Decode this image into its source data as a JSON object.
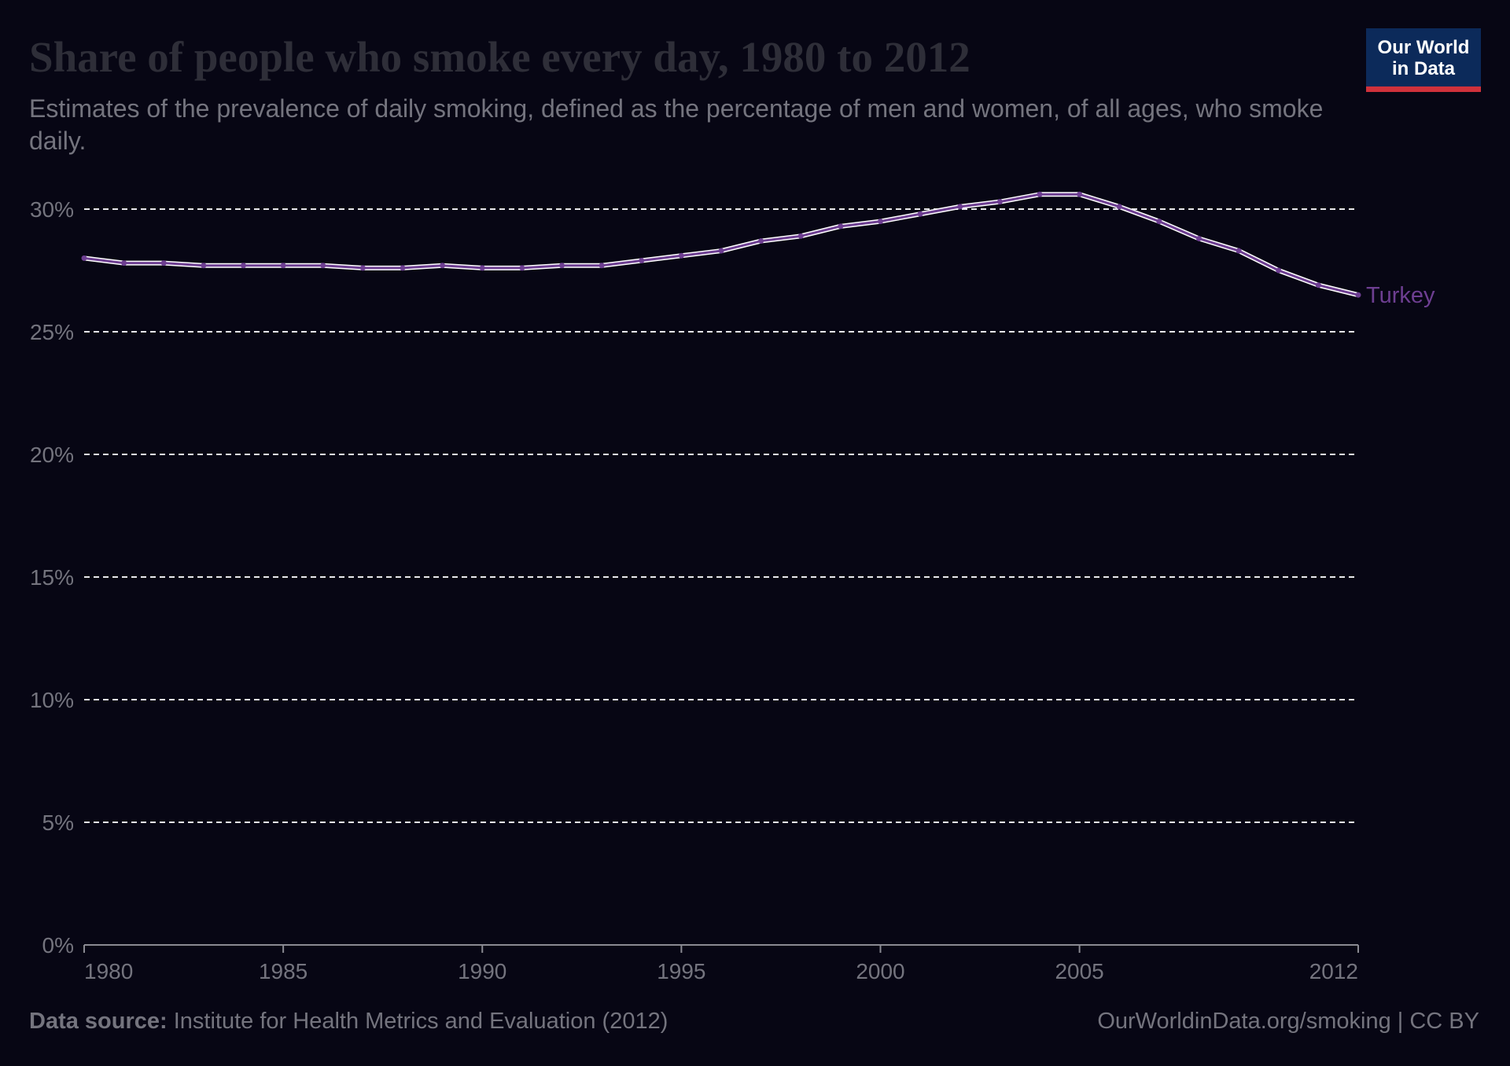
{
  "header": {
    "title": "Share of people who smoke every day, 1980 to 2012",
    "subtitle": "Estimates of the prevalence of daily smoking, defined as the percentage of men and women, of all ages, who smoke daily."
  },
  "logo": {
    "line1": "Our World",
    "line2": "in Data",
    "colors": {
      "background": "#0c2a5a",
      "accent": "#d0313b"
    }
  },
  "footer": {
    "source_label": "Data source:",
    "source_text": "Institute for Health Metrics and Evaluation (2012)",
    "attribution": "OurWorldinData.org/smoking | CC BY"
  },
  "chart_data": {
    "type": "line",
    "title": "Share of people who smoke every day, 1980 to 2012",
    "xlabel": "",
    "ylabel": "",
    "x": [
      1980,
      1981,
      1982,
      1983,
      1984,
      1985,
      1986,
      1987,
      1988,
      1989,
      1990,
      1991,
      1992,
      1993,
      1994,
      1995,
      1996,
      1997,
      1998,
      1999,
      2000,
      2001,
      2002,
      2003,
      2004,
      2005,
      2006,
      2007,
      2008,
      2009,
      2010,
      2011,
      2012
    ],
    "series": [
      {
        "name": "Turkey",
        "color": "#6d3e91",
        "values": [
          28.0,
          27.8,
          27.8,
          27.7,
          27.7,
          27.7,
          27.7,
          27.6,
          27.6,
          27.7,
          27.6,
          27.6,
          27.7,
          27.7,
          27.9,
          28.1,
          28.3,
          28.7,
          28.9,
          29.3,
          29.5,
          29.8,
          30.1,
          30.3,
          30.6,
          30.6,
          30.1,
          29.5,
          28.8,
          28.3,
          27.5,
          26.9,
          26.5
        ]
      }
    ],
    "xlim": [
      1980,
      2012
    ],
    "ylim": [
      0,
      30
    ],
    "x_ticks": [
      {
        "value": 1980,
        "label": "1980"
      },
      {
        "value": 1985,
        "label": "1985"
      },
      {
        "value": 1990,
        "label": "1990"
      },
      {
        "value": 1995,
        "label": "1995"
      },
      {
        "value": 2000,
        "label": "2000"
      },
      {
        "value": 2005,
        "label": "2005"
      },
      {
        "value": 2012,
        "label": "2012"
      }
    ],
    "y_ticks": [
      {
        "value": 0,
        "label": "0%"
      },
      {
        "value": 5,
        "label": "5%"
      },
      {
        "value": 10,
        "label": "10%"
      },
      {
        "value": 15,
        "label": "15%"
      },
      {
        "value": 20,
        "label": "20%"
      },
      {
        "value": 25,
        "label": "25%"
      },
      {
        "value": 30,
        "label": "30%"
      }
    ],
    "grid": "horizontal dashed",
    "legend": "inline label at line end"
  }
}
